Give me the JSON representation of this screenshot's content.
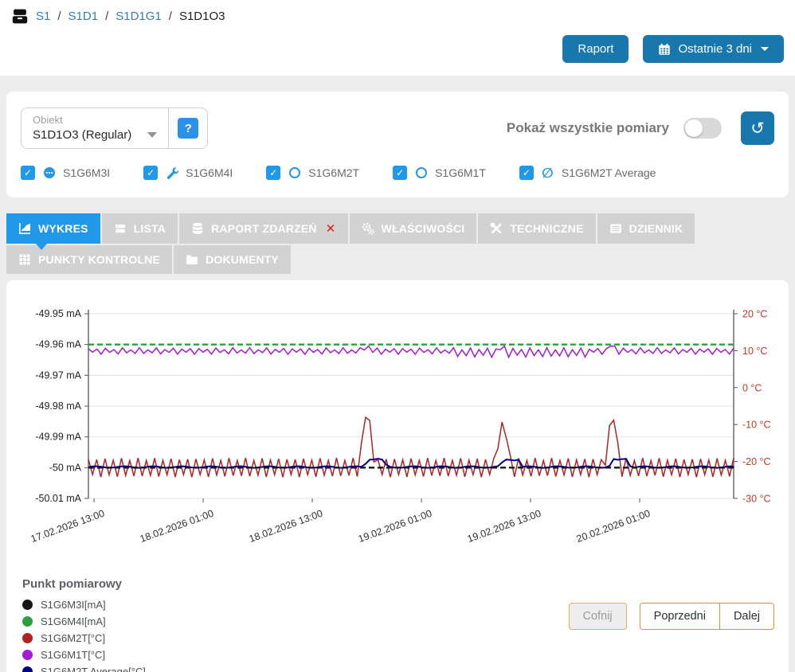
{
  "breadcrumb": {
    "separator": "/",
    "items": [
      {
        "label": "S1"
      },
      {
        "label": "S1D1"
      },
      {
        "label": "S1D1G1"
      },
      {
        "label": "S1D1O3"
      }
    ]
  },
  "header": {
    "report_button": "Raport",
    "range_button": "Ostatnie 3 dni"
  },
  "filters": {
    "object_label": "Obiekt",
    "object_value": "S1D1O3 (Regular)",
    "help_label": "?",
    "show_all_label": "Pokaż wszystkie pomiary",
    "toggle_on": false,
    "check_glyph": "✓",
    "slashed_circle_glyph": "∅",
    "history_icon_glyph": "↺",
    "measurements": [
      {
        "label": "S1G6M3I",
        "icon": "comment-dots-icon",
        "checked": true
      },
      {
        "label": "S1G6M4I",
        "icon": "wrench-icon",
        "checked": true
      },
      {
        "label": "S1G6M2T",
        "icon": "circle-outline-icon",
        "checked": true
      },
      {
        "label": "S1G6M1T",
        "icon": "circle-outline-icon",
        "checked": true
      },
      {
        "label": "S1G6M2T Average",
        "icon": "slashed-circle-icon",
        "checked": true
      }
    ]
  },
  "tabs": {
    "row1": [
      {
        "label": "WYKRES",
        "icon": "chart-icon",
        "active": true
      },
      {
        "label": "LISTA",
        "icon": "list-icon",
        "active": false
      },
      {
        "label": "RAPORT ZDARZEŃ",
        "icon": "database-icon",
        "badge": "✕",
        "active": false
      },
      {
        "label": "WŁAŚCIWOŚCI",
        "icon": "gears-icon",
        "active": false
      },
      {
        "label": "TECHNICZNE",
        "icon": "tools-icon",
        "active": false
      },
      {
        "label": "DZIENNIK",
        "icon": "journal-icon",
        "active": false
      }
    ],
    "row2": [
      {
        "label": "PUNKTY KONTROLNE",
        "icon": "grid-icon",
        "active": false
      },
      {
        "label": "DOKUMENTY",
        "icon": "folder-icon",
        "active": false
      }
    ]
  },
  "chart_data": {
    "type": "line",
    "grid": true,
    "x_axis": {
      "labels": [
        "17.02.2026 13:00",
        "18.02.2026 01:00",
        "18.02.2026 13:00",
        "19.02.2026 01:00",
        "19.02.2026 13:00",
        "20.02.2026 01:00"
      ],
      "interval_hours": 12
    },
    "left_axis": {
      "unit": "mA",
      "max": -49.95,
      "min": -50.01,
      "tick_step": 0.01,
      "tick_labels": [
        "-49.95 mA",
        "-49.96 mA",
        "-49.97 mA",
        "-49.98 mA",
        "-49.99 mA",
        "-50 mA",
        "-50.01 mA"
      ],
      "label_color": "#1f1f1f"
    },
    "right_axis": {
      "unit": "°C",
      "max": 20,
      "min": -30,
      "tick_step": 10,
      "tick_labels": [
        "20 °C",
        "10 °C",
        "0 °C",
        "-10 °C",
        "-20 °C",
        "-30 °C"
      ],
      "label_color": "#c0392b"
    },
    "series": [
      {
        "name": "S1G6M2T[°C]",
        "axis": "right",
        "color": "#b22222",
        "type": "sawtooth",
        "width": 1.5,
        "base_high": -19.4,
        "base_low": -23.9,
        "cycles": 78,
        "jitter": 0.35,
        "spikes": [
          {
            "x": 0.432,
            "peak": -6.8,
            "w": 0.015
          },
          {
            "x": 0.642,
            "peak": -9.2,
            "w": 0.015
          },
          {
            "x": 0.812,
            "peak": -8.0,
            "w": 0.015
          }
        ]
      },
      {
        "name": "S1G6M2T Average[°C]",
        "axis": "right",
        "color": "#00008b",
        "type": "average",
        "width": 2,
        "base": -21.5,
        "wiggle": 0.22,
        "bumps": [
          {
            "x": 0.445,
            "w": 0.024,
            "value": -19.4
          },
          {
            "x": 0.655,
            "w": 0.024,
            "value": -19.6
          },
          {
            "x": 0.824,
            "w": 0.022,
            "value": -19.4
          }
        ]
      },
      {
        "name": "S1G6M1T[°C]",
        "axis": "right",
        "color": "#a21cd6",
        "type": "sawtooth",
        "width": 1.5,
        "base_high": 10.5,
        "base_low": 9.3,
        "cycles": 76,
        "jitter": 0.3,
        "dip_region": [
          0.57,
          0.77
        ],
        "dip_amount": 0.8,
        "spikes": [
          {
            "x": 0.432,
            "peak": 11.5,
            "w": 0.008
          },
          {
            "x": 0.642,
            "peak": 11.5,
            "w": 0.008
          },
          {
            "x": 0.812,
            "peak": 11.9,
            "w": 0.008
          }
        ]
      },
      {
        "name": "S1G6M3I[mA]",
        "axis": "left",
        "color": "#161616",
        "type": "constant",
        "width": 2.4,
        "dash": "7 4",
        "value": -50
      },
      {
        "name": "S1G6M4I[mA]",
        "axis": "left",
        "color": "#2f9e41",
        "type": "constant",
        "width": 2.4,
        "dash": "7 4",
        "value": -49.96
      }
    ]
  },
  "legend": {
    "title": "Punkt pomiarowy",
    "items": [
      {
        "label": "S1G6M3I[mA]",
        "color": "#161616"
      },
      {
        "label": "S1G6M4I[mA]",
        "color": "#2f9e41"
      },
      {
        "label": "S1G6M2T[°C]",
        "color": "#b22222"
      },
      {
        "label": "S1G6M1T[°C]",
        "color": "#a21cd6"
      },
      {
        "label": "S1G6M2T Average[°C]",
        "color": "#00008b"
      }
    ]
  },
  "nav": {
    "back": "Cofnij",
    "prev": "Poprzedni",
    "next": "Dalej"
  }
}
